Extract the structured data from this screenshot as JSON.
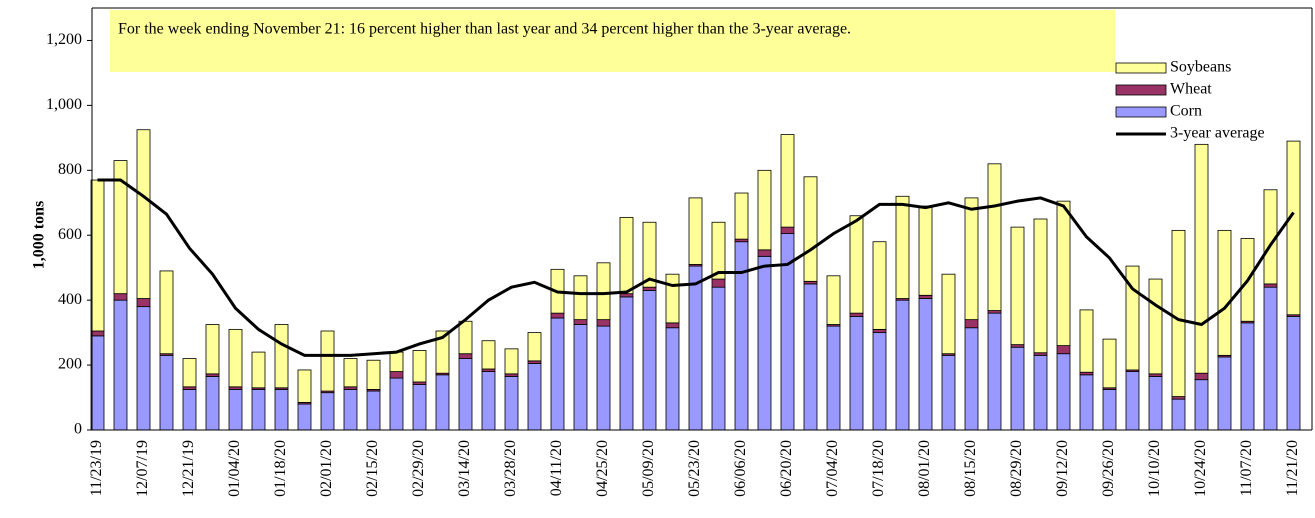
{
  "chart_data": {
    "type": "bar",
    "stacked": true,
    "y_label": "1,000 tons",
    "annotation": "For the week ending November 21: 16 percent higher than last year and 34 percent higher than the 3-year average.",
    "categories": [
      "11/23/19",
      null,
      "12/07/19",
      null,
      "12/21/19",
      null,
      "01/04/20",
      null,
      "01/18/20",
      null,
      "02/01/20",
      null,
      "02/15/20",
      null,
      "02/29/20",
      null,
      "03/14/20",
      null,
      "03/28/20",
      null,
      "04/11/20",
      null,
      "04/25/20",
      null,
      "05/09/20",
      null,
      "05/23/20",
      null,
      "06/06/20",
      null,
      "06/20/20",
      null,
      "07/04/20",
      null,
      "07/18/20",
      null,
      "08/01/20",
      null,
      "08/15/20",
      null,
      "08/29/20",
      null,
      "09/12/20",
      null,
      "09/26/20",
      null,
      "10/10/20",
      null,
      "10/24/20",
      null,
      "11/07/20",
      null,
      "11/21/20"
    ],
    "series": [
      {
        "name": "Corn",
        "color": "#9999ff",
        "values": [
          290,
          400,
          380,
          230,
          125,
          165,
          125,
          125,
          125,
          80,
          115,
          125,
          120,
          160,
          140,
          170,
          220,
          180,
          165,
          205,
          345,
          325,
          320,
          410,
          430,
          315,
          505,
          440,
          580,
          535,
          605,
          450,
          320,
          350,
          300,
          400,
          405,
          230,
          315,
          360,
          255,
          230,
          235,
          170,
          125,
          180,
          165,
          95,
          155,
          225,
          330,
          440,
          350
        ]
      },
      {
        "name": "Wheat",
        "color": "#993366",
        "values": [
          15,
          20,
          25,
          5,
          8,
          8,
          8,
          5,
          5,
          5,
          5,
          8,
          5,
          20,
          8,
          5,
          15,
          8,
          8,
          8,
          15,
          15,
          20,
          10,
          10,
          15,
          5,
          25,
          8,
          20,
          20,
          8,
          5,
          10,
          10,
          5,
          10,
          5,
          25,
          8,
          8,
          8,
          25,
          8,
          5,
          5,
          8,
          8,
          20,
          5,
          5,
          10,
          5
        ]
      },
      {
        "name": "Soybeans",
        "color": "#ffff99",
        "values": [
          465,
          410,
          520,
          255,
          87,
          152,
          177,
          110,
          195,
          100,
          185,
          87,
          90,
          60,
          97,
          130,
          100,
          87,
          77,
          87,
          135,
          135,
          175,
          235,
          200,
          150,
          205,
          175,
          142,
          245,
          285,
          322,
          150,
          300,
          270,
          315,
          275,
          245,
          375,
          452,
          362,
          412,
          445,
          192,
          150,
          320,
          292,
          512,
          705,
          385,
          255,
          290,
          535
        ]
      },
      {
        "name": "3-year average",
        "color": "#000000",
        "type": "line",
        "values": [
          770,
          770,
          720,
          665,
          560,
          480,
          375,
          310,
          265,
          230,
          230,
          230,
          235,
          240,
          265,
          285,
          340,
          400,
          440,
          455,
          425,
          420,
          420,
          425,
          465,
          445,
          450,
          485,
          485,
          505,
          510,
          555,
          605,
          645,
          695,
          695,
          685,
          700,
          680,
          690,
          705,
          715,
          690,
          595,
          530,
          435,
          385,
          340,
          325,
          375,
          460,
          570,
          670
        ]
      }
    ],
    "ylim": [
      0,
      1300
    ],
    "yticks": [
      0,
      200,
      400,
      600,
      800,
      {
        "value": 1000,
        "label": "1,000"
      },
      {
        "value": 1200,
        "label": "1,200"
      }
    ],
    "legend": "upper right"
  }
}
